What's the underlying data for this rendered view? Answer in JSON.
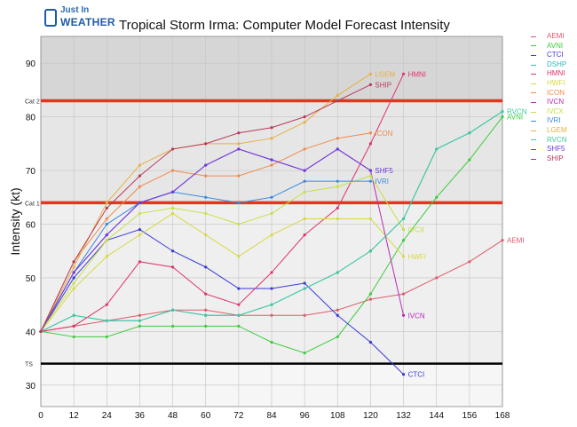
{
  "logo": {
    "line1": "Just In",
    "line2": "WEATHER"
  },
  "chart_data": {
    "type": "line",
    "title": "Tropical Storm Irma: Computer Model Forecast Intensity",
    "ylabel": "Intensity (kt)",
    "xlabel": "",
    "xlim": [
      0,
      168
    ],
    "ylim": [
      26,
      95
    ],
    "xticks": [
      0,
      12,
      24,
      36,
      48,
      60,
      72,
      84,
      96,
      108,
      120,
      132,
      144,
      156,
      168
    ],
    "yticks": [
      30,
      40,
      50,
      60,
      70,
      80,
      90
    ],
    "grid": true,
    "legend_position": "right",
    "thresholds": [
      {
        "label": "Cat 2",
        "value": 83,
        "color": "#e8331f"
      },
      {
        "label": "Cat 1",
        "value": 64,
        "color": "#e8331f"
      },
      {
        "label": "TS",
        "value": 34,
        "color": "#000000"
      }
    ],
    "bands": [
      {
        "from": 83,
        "to": 95,
        "color": "#d6d6d6"
      },
      {
        "from": 64,
        "to": 83,
        "color": "#e6e6e6"
      },
      {
        "from": 34,
        "to": 64,
        "color": "#efefef"
      },
      {
        "from": 26,
        "to": 34,
        "color": "#f6f6f6"
      }
    ],
    "series": [
      {
        "name": "AEMI",
        "color": "#e05a6a",
        "x": [
          0,
          12,
          24,
          36,
          48,
          60,
          72,
          84,
          96,
          108,
          120,
          132,
          144,
          156,
          168
        ],
        "values": [
          40,
          41,
          42,
          43,
          44,
          44,
          43,
          43,
          43,
          44,
          46,
          47,
          50,
          53,
          57
        ]
      },
      {
        "name": "AVNI",
        "color": "#3ccc3c",
        "x": [
          0,
          12,
          24,
          36,
          48,
          60,
          72,
          84,
          96,
          108,
          120,
          132,
          144,
          156,
          168
        ],
        "values": [
          40,
          39,
          39,
          41,
          41,
          41,
          41,
          38,
          36,
          39,
          47,
          57,
          65,
          72,
          80
        ]
      },
      {
        "name": "CTCI",
        "color": "#3a3ad8",
        "x": [
          0,
          12,
          24,
          36,
          48,
          60,
          72,
          84,
          96,
          108,
          120,
          132
        ],
        "values": [
          40,
          50,
          57,
          59,
          55,
          52,
          48,
          48,
          49,
          43,
          38,
          32
        ]
      },
      {
        "name": "DSHP",
        "color": "#2ab8b8",
        "x": [
          0,
          12,
          24,
          36,
          48,
          60,
          72,
          84,
          96,
          108,
          120,
          132,
          144,
          156,
          168
        ],
        "values": [
          40,
          43,
          42,
          42,
          44,
          43,
          43,
          45,
          48,
          51,
          55,
          61,
          74,
          77,
          81
        ]
      },
      {
        "name": "HMNI",
        "color": "#e0336a",
        "x": [
          0,
          12,
          24,
          36,
          48,
          60,
          72,
          84,
          96,
          108,
          120,
          132
        ],
        "values": [
          40,
          41,
          45,
          53,
          52,
          47,
          45,
          51,
          58,
          63,
          75,
          88
        ]
      },
      {
        "name": "HWFI",
        "color": "#d8d840",
        "x": [
          0,
          12,
          24,
          36,
          48,
          60,
          72,
          84,
          96,
          108,
          120,
          132
        ],
        "values": [
          40,
          48,
          54,
          58,
          62,
          58,
          54,
          58,
          61,
          61,
          61,
          54
        ]
      },
      {
        "name": "ICON",
        "color": "#f08a4a",
        "x": [
          0,
          12,
          24,
          36,
          48,
          60,
          72,
          84,
          96,
          108,
          120
        ],
        "values": [
          40,
          53,
          61,
          67,
          70,
          69,
          69,
          71,
          74,
          76,
          77
        ]
      },
      {
        "name": "IVCN",
        "color": "#b82ab8",
        "x": [
          0,
          12,
          24,
          36,
          48,
          60,
          72,
          84,
          96,
          108,
          120,
          132
        ],
        "values": [
          40,
          51,
          58,
          64,
          66,
          71,
          74,
          72,
          70,
          74,
          70,
          43
        ]
      },
      {
        "name": "IVCX",
        "color": "#c8e040",
        "x": [
          0,
          12,
          24,
          36,
          48,
          60,
          72,
          84,
          96,
          108,
          120,
          132
        ],
        "values": [
          40,
          49,
          57,
          62,
          63,
          62,
          60,
          62,
          66,
          67,
          69,
          59
        ]
      },
      {
        "name": "IVRI",
        "color": "#3a8ae0",
        "x": [
          0,
          12,
          24,
          36,
          48,
          60,
          72,
          84,
          96,
          108,
          120
        ],
        "values": [
          40,
          51,
          60,
          64,
          66,
          65,
          64,
          65,
          68,
          68,
          68
        ]
      },
      {
        "name": "LGEM",
        "color": "#e8b040",
        "x": [
          0,
          12,
          24,
          36,
          48,
          60,
          72,
          84,
          96,
          108,
          120
        ],
        "values": [
          40,
          52,
          64,
          71,
          74,
          75,
          75,
          76,
          79,
          84,
          88
        ]
      },
      {
        "name": "RVCN",
        "color": "#40c8a0",
        "x": [
          0,
          12,
          24,
          36,
          48,
          60,
          72,
          84,
          96,
          108,
          120,
          132,
          144,
          156,
          168
        ],
        "values": [
          40,
          43,
          42,
          42,
          44,
          43,
          43,
          45,
          48,
          51,
          55,
          61,
          74,
          77,
          81
        ]
      },
      {
        "name": "SHF5",
        "color": "#6a3ae0",
        "x": [
          0,
          12,
          24,
          36,
          48,
          60,
          72,
          84,
          96,
          108,
          120
        ],
        "values": [
          40,
          51,
          58,
          64,
          66,
          71,
          74,
          72,
          70,
          74,
          70
        ]
      },
      {
        "name": "SHIP",
        "color": "#b83a5a",
        "x": [
          0,
          12,
          24,
          36,
          48,
          60,
          72,
          84,
          96,
          108,
          120
        ],
        "values": [
          40,
          53,
          63,
          69,
          74,
          75,
          77,
          78,
          80,
          83,
          86
        ]
      }
    ],
    "end_labels": [
      {
        "text": "HMNI",
        "series": "HMNI",
        "color": "#e0336a"
      },
      {
        "text": "LGEM",
        "series": "LGEM",
        "color": "#e8b040"
      },
      {
        "text": "SHIP",
        "series": "SHIP",
        "color": "#b83a5a"
      },
      {
        "text": "ICON",
        "series": "ICON",
        "color": "#f08a4a"
      },
      {
        "text": "SHF5",
        "series": "SHF5",
        "color": "#6a3ae0"
      },
      {
        "text": "IVRI",
        "series": "IVRI",
        "color": "#3a8ae0"
      },
      {
        "text": "IVCX",
        "series": "IVCX",
        "color": "#c8e040"
      },
      {
        "text": "HWFI",
        "series": "HWFI",
        "color": "#d8d840"
      },
      {
        "text": "IVCN",
        "series": "IVCN",
        "color": "#b82ab8"
      },
      {
        "text": "CTCI",
        "series": "CTCI",
        "color": "#3a3ad8"
      },
      {
        "text": "AEMI",
        "series": "AEMI",
        "color": "#e05a6a"
      },
      {
        "text": "RVCN",
        "series": "RVCN",
        "color": "#40c8a0"
      },
      {
        "text": "AVNI",
        "series": "AVNI",
        "color": "#3ccc3c"
      }
    ]
  }
}
